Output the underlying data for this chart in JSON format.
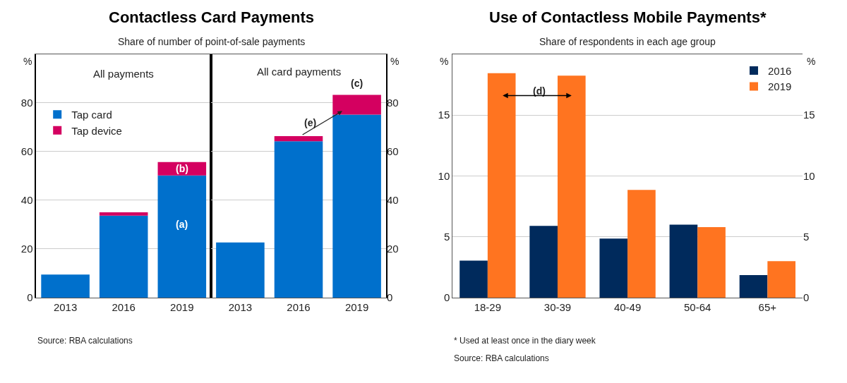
{
  "chart_data": [
    {
      "type": "bar",
      "title": "Contactless Card Payments",
      "subtitle": "Share of number of point-of-sale payments",
      "ylabel": "%",
      "y2label": "%",
      "categories": [
        "2013",
        "2016",
        "2019",
        "2013",
        "2016",
        "2019"
      ],
      "series": [
        {
          "name": "Tap card",
          "color": "#0070cc",
          "values": [
            9.5,
            33.7,
            50.2,
            22.7,
            64.3,
            75.2
          ]
        },
        {
          "name": "Tap device",
          "color": "#d40060",
          "values": [
            null,
            1.4,
            5.5,
            null,
            2.1,
            8.1
          ]
        }
      ],
      "stacked": true,
      "ylim": [
        0,
        100
      ],
      "yticks": [
        0,
        20,
        40,
        60,
        80
      ],
      "y2lim": [
        0,
        100
      ],
      "y2ticks": [
        0,
        20,
        40,
        60,
        80
      ],
      "grid": "y",
      "legend": "top left",
      "annotations": [
        "All payments",
        "All card payments",
        "(a)",
        "(b)",
        "(c)",
        "(e)",
        "Source: RBA calculations"
      ]
    },
    {
      "type": "bar",
      "title": "Use of Contactless Mobile Payments*",
      "subtitle": "Share of respondents in each age group",
      "ylabel": "%",
      "y2label": "%",
      "categories": [
        "18-29",
        "30-39",
        "40-49",
        "50-64",
        "65+"
      ],
      "series": [
        {
          "name": "2016",
          "color": "#002a5c",
          "values": [
            3.05,
            5.9,
            4.85,
            6.0,
            1.85
          ]
        },
        {
          "name": "2019",
          "color": "#ff7420",
          "values": [
            18.45,
            18.25,
            8.85,
            5.8,
            3.0
          ]
        }
      ],
      "ylim": [
        0,
        20
      ],
      "yticks": [
        0,
        5,
        10,
        15
      ],
      "y2lim": [
        0,
        20
      ],
      "y2ticks": [
        0,
        5,
        10,
        15
      ],
      "grid": "y",
      "legend": "top right",
      "annotations": [
        "(d)",
        "* Used at least once in the diary week",
        "Source: RBA calculations"
      ]
    }
  ]
}
